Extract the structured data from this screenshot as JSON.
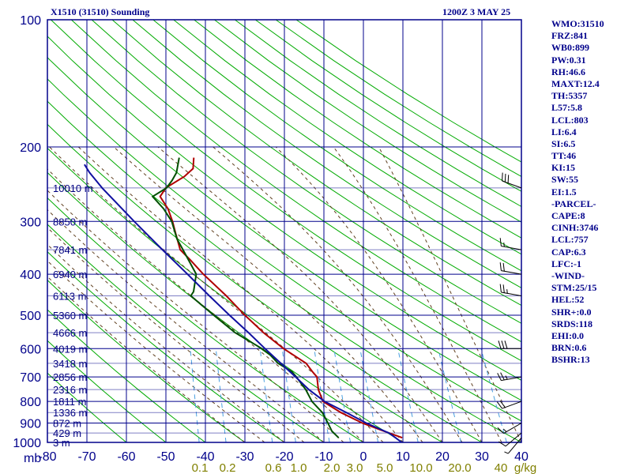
{
  "header": {
    "station": "X1510 (31510) Sounding",
    "time": "1200Z  3 MAY 25"
  },
  "indices": [
    "WMO:31510",
    "FRZ:841",
    "WB0:899",
    "PW:0.31",
    "RH:46.6",
    "MAXT:12.4",
    "TH:5357",
    "L57:5.8",
    "LCL:803",
    "LI:6.4",
    "SI:6.5",
    "TT:46",
    "KI:15",
    "SW:55",
    "EI:1.5",
    "-PARCEL-",
    "CAPE:8",
    "CINH:3746",
    "LCL:757",
    "CAP:6.3",
    "LFC:-1",
    "-WIND-",
    "STM:25/15",
    "HEL:52",
    "SHR+:0.0",
    "SRDS:118",
    "EHI:0.0",
    "BRN:0.6",
    "BSHR:13"
  ],
  "colors": {
    "temperature": "#b00000",
    "dewpoint": "#005000",
    "parcel": "#1010a0",
    "grid": "#00008b",
    "dry_adiabat": "#00aa00",
    "moist_adiabat": "#604020",
    "mixing_ratio": "#4aa0e0",
    "label": "#00008b",
    "mixing_label": "#808000"
  },
  "chart_data": {
    "type": "line",
    "title": "X1510 (31510) Sounding",
    "subtitle": "1200Z  3 MAY 25",
    "y_axis": {
      "unit": "mb",
      "scale": "log",
      "range": [
        1000,
        100
      ],
      "ticks": [
        100,
        200,
        300,
        400,
        500,
        600,
        700,
        800,
        900,
        1000
      ]
    },
    "x_axis": {
      "range": [
        -80,
        40
      ],
      "ticks": [
        -80,
        -70,
        -60,
        -50,
        -40,
        -30,
        -20,
        -10,
        0,
        10,
        20,
        30,
        40
      ],
      "tick_labels": [
        "-80",
        "-70",
        "-60",
        "-50",
        "-40",
        "-30",
        "-20",
        "-10",
        "0",
        "10",
        "20",
        "30",
        "40"
      ]
    },
    "mixing_ratio_labels": [
      "0.1",
      "0.2",
      "0.6",
      "1.0",
      "2.0",
      "3.0",
      "5.0",
      "10.0",
      "20.0",
      "40",
      "g/kg"
    ],
    "mixing_ratio_values": [
      0.1,
      0.2,
      0.6,
      1.0,
      2.0,
      3.0,
      5.0,
      10.0,
      20.0,
      40
    ],
    "mixing_ratio_unit": "g/kg",
    "height_labels": [
      {
        "p": 250,
        "label": "10010 m"
      },
      {
        "p": 300,
        "label": "8850 m"
      },
      {
        "p": 350,
        "label": "7841 m"
      },
      {
        "p": 400,
        "label": "6940 m"
      },
      {
        "p": 450,
        "label": "6113 m"
      },
      {
        "p": 500,
        "label": "5360 m"
      },
      {
        "p": 550,
        "label": "4666 m"
      },
      {
        "p": 600,
        "label": "4019 m"
      },
      {
        "p": 650,
        "label": "3418 m"
      },
      {
        "p": 700,
        "label": "2856 m"
      },
      {
        "p": 750,
        "label": "2316 m"
      },
      {
        "p": 800,
        "label": "1811 m"
      },
      {
        "p": 850,
        "label": "1336 m"
      },
      {
        "p": 900,
        "label": "872 m"
      },
      {
        "p": 950,
        "label": "429 m"
      },
      {
        "p": 1000,
        "label": "3 m"
      }
    ],
    "series": [
      {
        "kind": "temperature",
        "points": [
          [
            975,
            9.7
          ],
          [
            940,
            4.8
          ],
          [
            900,
            -0.8
          ],
          [
            850,
            -6.5
          ],
          [
            800,
            -11.3
          ],
          [
            750,
            -12.8
          ],
          [
            700,
            -13.5
          ],
          [
            680,
            -14.8
          ],
          [
            650,
            -16.6
          ],
          [
            600,
            -22.7
          ],
          [
            550,
            -28.2
          ],
          [
            500,
            -33.4
          ],
          [
            450,
            -38.6
          ],
          [
            400,
            -45.0
          ],
          [
            370,
            -48.7
          ],
          [
            350,
            -51.5
          ],
          [
            320,
            -53.1
          ],
          [
            300,
            -54.2
          ],
          [
            280,
            -55.7
          ],
          [
            262,
            -58.0
          ],
          [
            250,
            -56.8
          ],
          [
            235,
            -52.4
          ],
          [
            225,
            -50.4
          ],
          [
            212,
            -50.5
          ]
        ]
      },
      {
        "kind": "dewpoint",
        "points": [
          [
            975,
            -6.4
          ],
          [
            940,
            -8.3
          ],
          [
            900,
            -9.5
          ],
          [
            850,
            -11.2
          ],
          [
            800,
            -14.1
          ],
          [
            750,
            -16.0
          ],
          [
            700,
            -18.7
          ],
          [
            680,
            -20.0
          ],
          [
            650,
            -23.7
          ],
          [
            620,
            -26.0
          ],
          [
            600,
            -28.2
          ],
          [
            550,
            -35.4
          ],
          [
            500,
            -41.3
          ],
          [
            450,
            -47.6
          ],
          [
            440,
            -47.0
          ],
          [
            400,
            -46.8
          ],
          [
            350,
            -50.8
          ],
          [
            330,
            -52.6
          ],
          [
            300,
            -54.4
          ],
          [
            280,
            -56.8
          ],
          [
            262,
            -59.9
          ],
          [
            250,
            -56.6
          ],
          [
            240,
            -55.4
          ],
          [
            230,
            -54.5
          ],
          [
            212,
            -54.2
          ]
        ]
      },
      {
        "kind": "parcel",
        "points": [
          [
            1000,
            9.7
          ],
          [
            975,
            8.0
          ],
          [
            950,
            6.2
          ],
          [
            900,
            0.2
          ],
          [
            850,
            -5.1
          ],
          [
            800,
            -10.9
          ],
          [
            750,
            -15.2
          ],
          [
            700,
            -18.9
          ],
          [
            650,
            -23.0
          ],
          [
            600,
            -27.4
          ],
          [
            550,
            -32.0
          ],
          [
            500,
            -37.3
          ],
          [
            450,
            -42.9
          ],
          [
            400,
            -49.0
          ],
          [
            350,
            -56.0
          ],
          [
            300,
            -63.9
          ],
          [
            250,
            -72.9
          ],
          [
            230,
            -76.5
          ],
          [
            220,
            -78.0
          ]
        ]
      }
    ],
    "wind_barbs": [
      {
        "p": 250,
        "dir": 290,
        "kt": 30
      },
      {
        "p": 350,
        "dir": 280,
        "kt": 15
      },
      {
        "p": 400,
        "dir": 280,
        "kt": 20
      },
      {
        "p": 450,
        "dir": 280,
        "kt": 25
      },
      {
        "p": 600,
        "dir": 270,
        "kt": 30
      },
      {
        "p": 700,
        "dir": 260,
        "kt": 25
      },
      {
        "p": 800,
        "dir": 250,
        "kt": 20
      },
      {
        "p": 900,
        "dir": 240,
        "kt": 15
      },
      {
        "p": 950,
        "dir": 230,
        "kt": 10
      },
      {
        "p": 975,
        "dir": 220,
        "kt": 5
      }
    ],
    "grid": true
  }
}
